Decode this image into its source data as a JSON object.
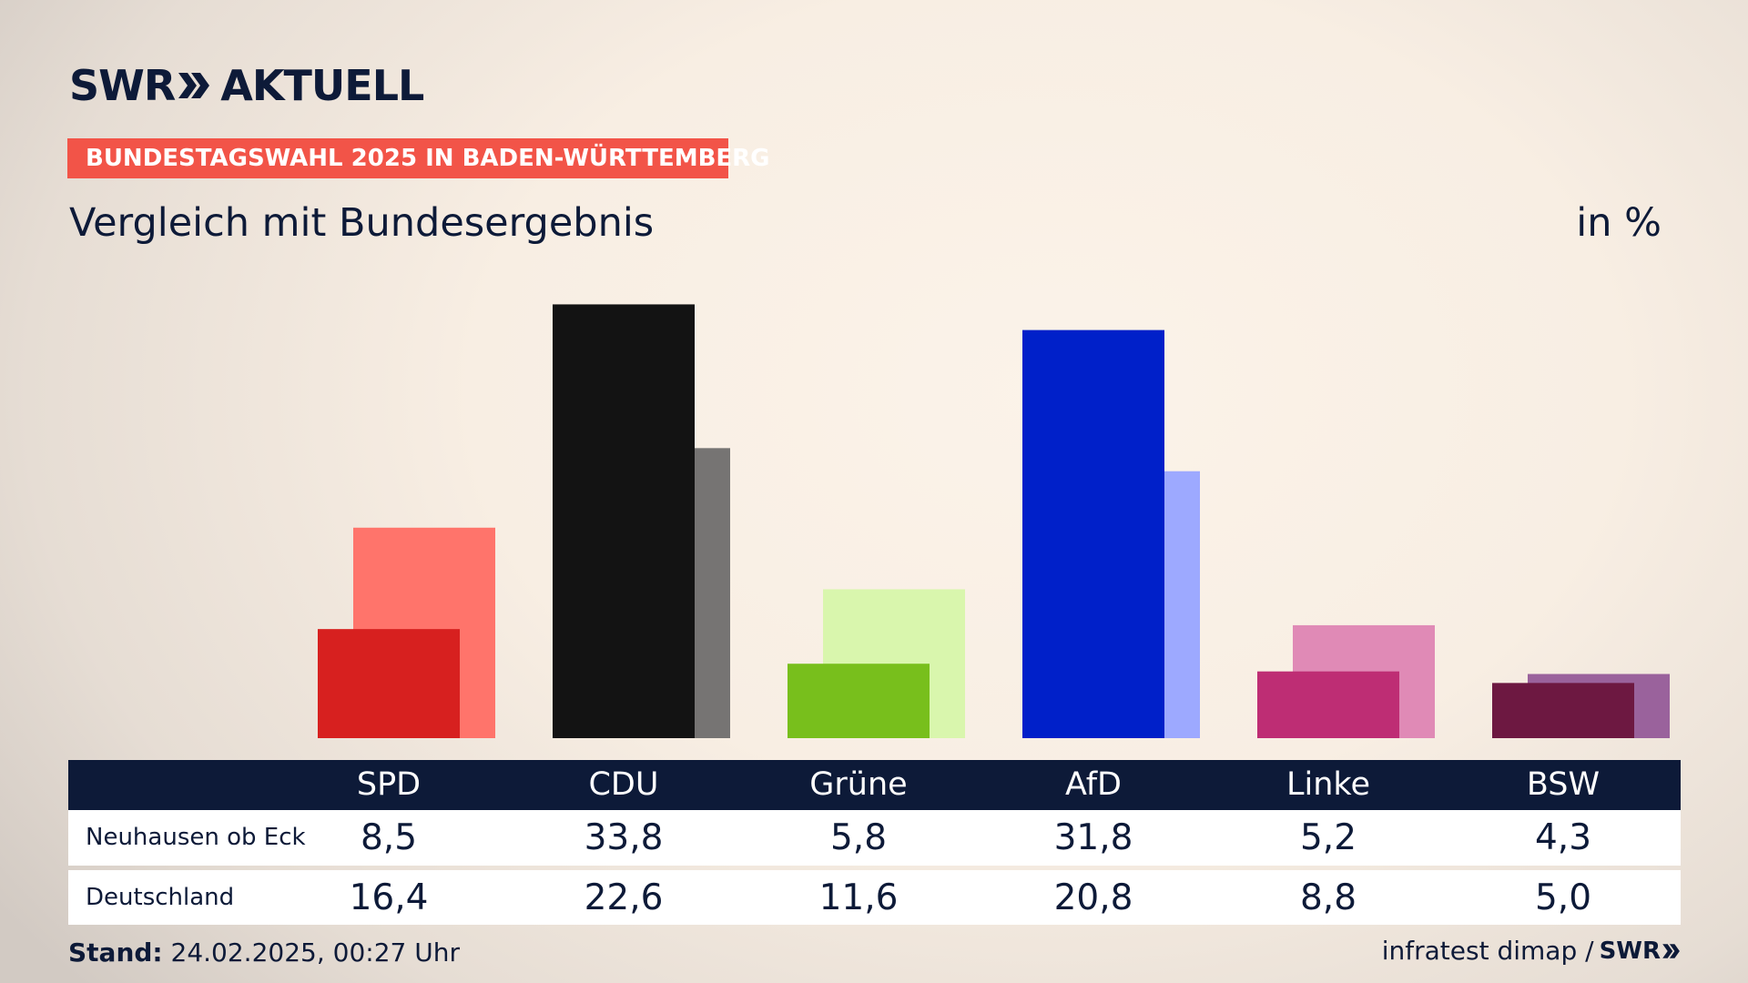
{
  "brand": {
    "logo_text_left": "SWR",
    "logo_text_right": "AKTUELL",
    "small_logo_text": "SWR"
  },
  "header": {
    "badge": "BUNDESTAGSWAHL 2025 IN BADEN-WÜRTTEMBERG",
    "title": "Vergleich mit Bundesergebnis",
    "unit": "in %"
  },
  "colors": {
    "badge": "#f25448",
    "table_header": "#0d1a38",
    "text": "#0d1a38"
  },
  "chart_data": {
    "type": "bar",
    "title": "Vergleich mit Bundesergebnis",
    "xlabel": "",
    "ylabel": "in %",
    "ylim": [
      0,
      35
    ],
    "grid": false,
    "categories": [
      "SPD",
      "CDU",
      "Grüne",
      "AfD",
      "Linke",
      "BSW"
    ],
    "series": [
      {
        "name": "Neuhausen ob Eck",
        "values": [
          8.5,
          33.8,
          5.8,
          31.8,
          5.2,
          4.3
        ],
        "colors": [
          "#d7201f",
          "#131313",
          "#78bf1c",
          "#0020c9",
          "#be2d74",
          "#6d1841"
        ]
      },
      {
        "name": "Deutschland",
        "values": [
          16.4,
          22.6,
          11.6,
          20.8,
          8.8,
          5.0
        ],
        "colors": [
          "#ff746b",
          "#767473",
          "#d9f6ad",
          "#9da9ff",
          "#e08ab6",
          "#9a629c"
        ]
      }
    ]
  },
  "table": {
    "headers": [
      "SPD",
      "CDU",
      "Grüne",
      "AfD",
      "Linke",
      "BSW"
    ],
    "rows": [
      {
        "label": "Neuhausen ob Eck",
        "values": [
          "8,5",
          "33,8",
          "5,8",
          "31,8",
          "5,2",
          "4,3"
        ]
      },
      {
        "label": "Deutschland",
        "values": [
          "16,4",
          "22,6",
          "11,6",
          "20,8",
          "8,8",
          "5,0"
        ]
      }
    ]
  },
  "footer": {
    "stand_label": "Stand:",
    "stand_value": " 24.02.2025, 00:27 Uhr",
    "source": "infratest dimap /"
  }
}
